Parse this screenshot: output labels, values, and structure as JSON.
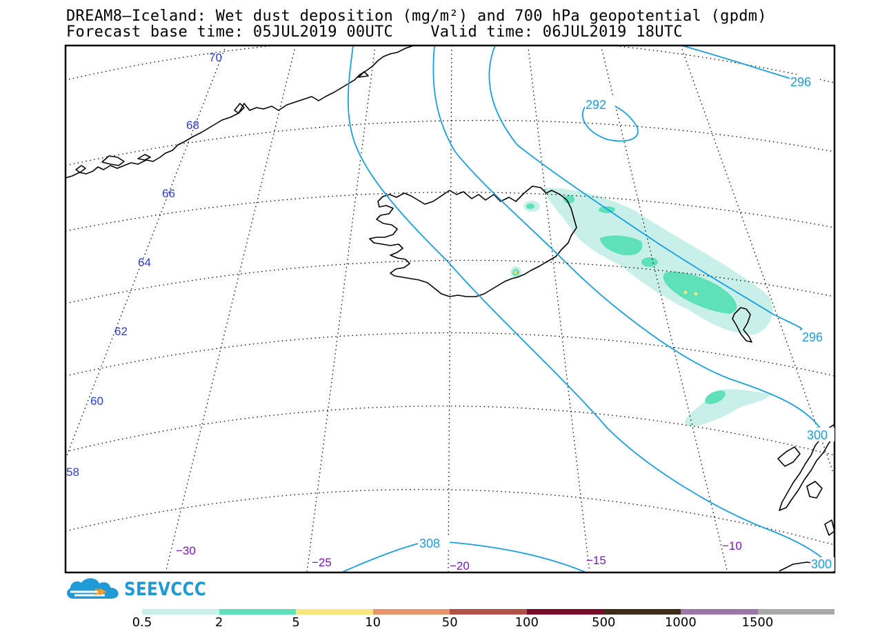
{
  "title_line1": "DREAM8–Iceland: Wet dust deposition (mg/m²) and 700 hPa geopotential (gpdm)",
  "title_line2": "Forecast base time: 05JUL2019 00UTC    Valid time: 06JUL2019 18UTC",
  "latitude_labels": [
    "70",
    "68",
    "66",
    "64",
    "62",
    "60",
    "58"
  ],
  "longitude_labels": [
    "−30",
    "−25",
    "−20",
    "−15",
    "−10"
  ],
  "contour_labels": [
    "292",
    "296",
    "296",
    "300",
    "300",
    "308"
  ],
  "colors": {
    "latitude_label": "#2b39e6",
    "longitude_label": "#7b14c9",
    "contour": "#15a0e6",
    "frame": "#000000"
  },
  "logo": {
    "text": "SEEVCCC",
    "icon": "cloud-logo-icon",
    "color": "#1f9ad6"
  },
  "legend": {
    "labels": [
      "0.5",
      "2",
      "5",
      "10",
      "50",
      "100",
      "500",
      "1000",
      "1500"
    ],
    "colors": [
      "#c8f0e8",
      "#5ee0b8",
      "#f5e67d",
      "#e8936b",
      "#b2524a",
      "#7a0a2a",
      "#3e2a18",
      "#9b76a8",
      "#a9a9a9"
    ]
  }
}
